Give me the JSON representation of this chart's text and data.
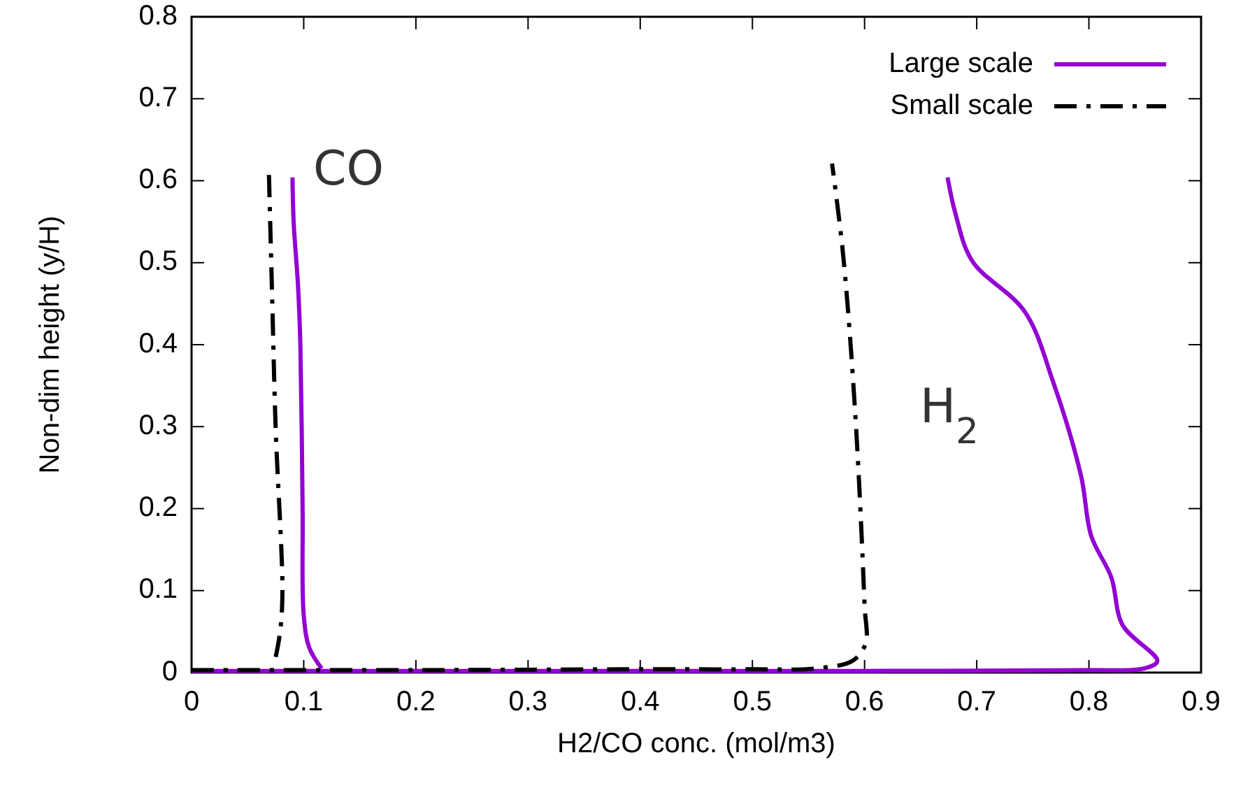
{
  "chart_data": {
    "type": "line",
    "xlabel": "H2/CO conc. (mol/m3)",
    "ylabel": "Non-dim height (y/H)",
    "xlim": [
      0,
      0.9
    ],
    "xticks": [
      0,
      0.1,
      0.2,
      0.3,
      0.4,
      0.5,
      0.6,
      0.7,
      0.8,
      0.9
    ],
    "ylim": [
      0,
      0.8
    ],
    "yticks": [
      0,
      0.1,
      0.2,
      0.3,
      0.4,
      0.5,
      0.6,
      0.7,
      0.8
    ],
    "grid": false,
    "legend": "top right",
    "series": [
      {
        "name": "Large scale",
        "color": "#9400d3",
        "line_style": "solid",
        "x": [
          0.09,
          0.091,
          0.095,
          0.097,
          0.099,
          0.1,
          0.105,
          0.116,
          null,
          0,
          0.2,
          0.4,
          0.6,
          0.8,
          0.849,
          0.861,
          0.83,
          0.82,
          0.802,
          0.793,
          0.768,
          0.743,
          0.696,
          0.681,
          0.674
        ],
        "values": [
          0.604,
          0.55,
          0.47,
          0.4,
          0.2,
          0.07,
          0.03,
          0.005,
          null,
          0.002,
          0.002,
          0.002,
          0.002,
          0.003,
          0.005,
          0.014,
          0.058,
          0.116,
          0.167,
          0.24,
          0.355,
          0.44,
          0.502,
          0.56,
          0.604
        ]
      },
      {
        "name": "Small scale",
        "color": "#000000",
        "line_style": "dashed",
        "x": [
          0.069,
          0.072,
          0.075,
          0.081,
          0.079,
          0.075,
          null,
          0,
          0.2,
          0.4,
          0.5,
          0.556,
          0.59,
          0.601,
          0.6,
          0.592,
          0.581,
          0.571
        ],
        "values": [
          0.607,
          0.45,
          0.297,
          0.099,
          0.05,
          0.019,
          null,
          0.003,
          0.003,
          0.004,
          0.004,
          0.005,
          0.015,
          0.036,
          0.082,
          0.309,
          0.508,
          0.621
        ]
      }
    ],
    "annotations": [
      "CO",
      "H$_{2}$"
    ]
  }
}
